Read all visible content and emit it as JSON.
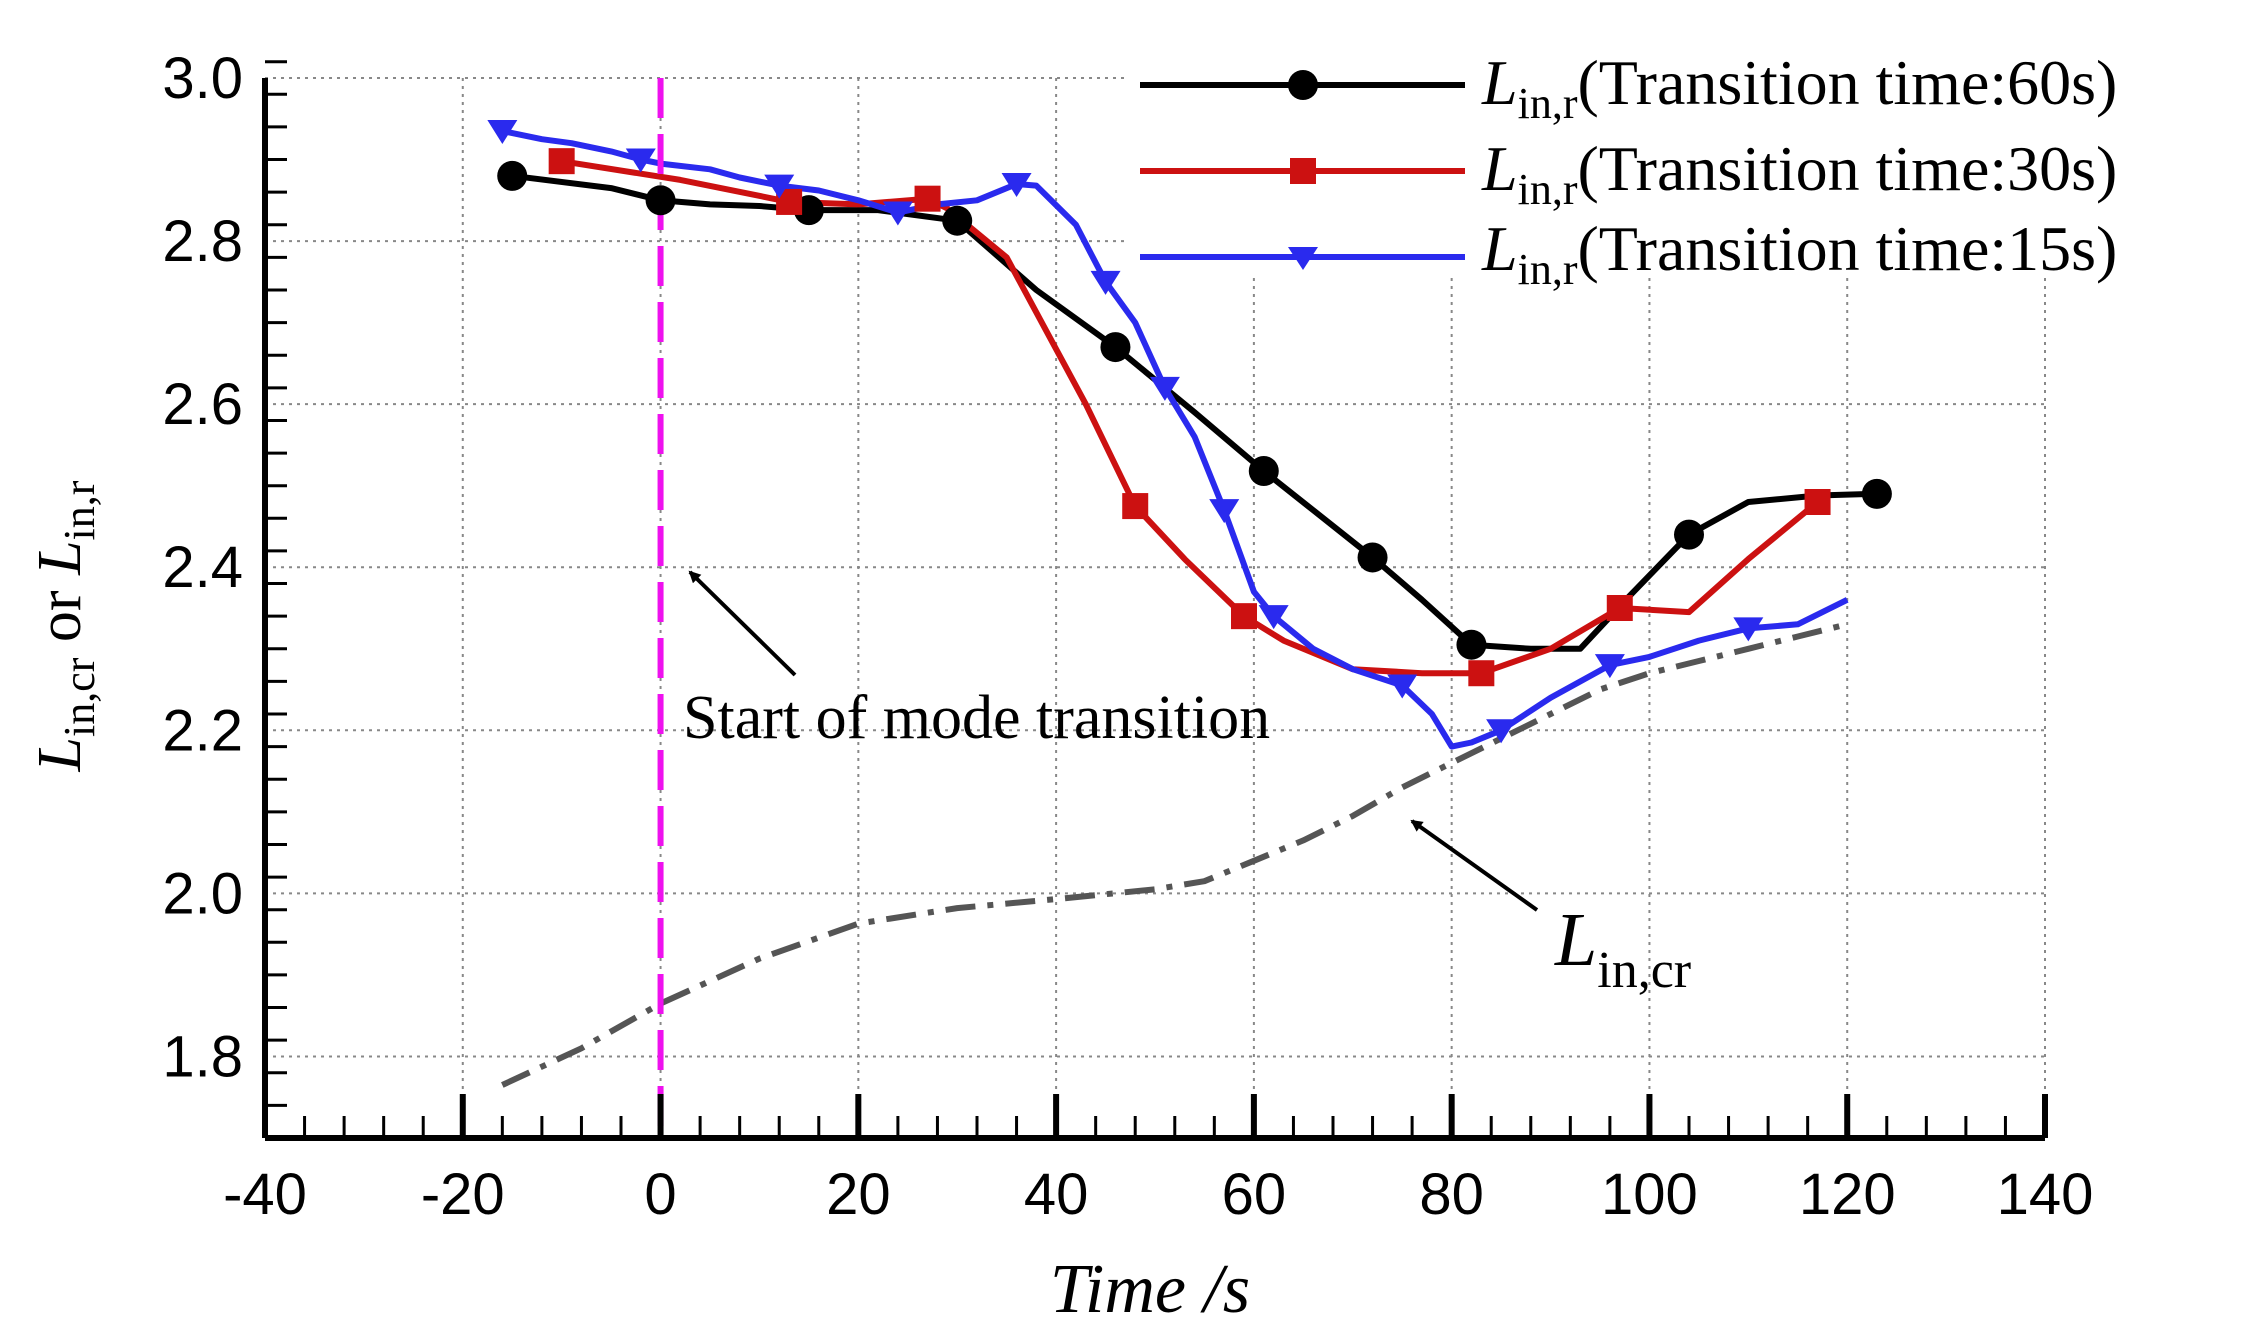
{
  "chart_data": {
    "type": "line",
    "title": "",
    "xlabel": "Time /s",
    "ylabel": {
      "l1": "L",
      "s1": "in,cr",
      "mid": " or ",
      "l2": "L",
      "s2": "in,r"
    },
    "xlim": [
      -40,
      140
    ],
    "ylim": [
      1.7,
      3.0
    ],
    "xticks": [
      -40,
      -20,
      0,
      20,
      40,
      60,
      80,
      100,
      120,
      140
    ],
    "yticks": [
      "1.8",
      "2.0",
      "2.2",
      "2.4",
      "2.6",
      "2.8",
      "3.0"
    ],
    "grid": true,
    "legend_position": "top-right",
    "series": [
      {
        "name": "Lin,r(Transition time:60s)",
        "legend_main": "L",
        "legend_sub": "in,r",
        "legend_rest": "(Transition  time:60s)",
        "color": "#000000",
        "marker": "circle",
        "x": [
          -15,
          -5,
          0,
          5,
          10,
          15,
          22,
          30,
          38,
          46,
          54,
          61,
          66,
          72,
          77,
          82,
          88,
          93,
          98,
          104,
          110,
          117,
          123
        ],
        "y": [
          2.88,
          2.865,
          2.85,
          2.845,
          2.843,
          2.838,
          2.838,
          2.825,
          2.74,
          2.67,
          2.59,
          2.518,
          2.47,
          2.412,
          2.36,
          2.305,
          2.3,
          2.3,
          2.365,
          2.44,
          2.48,
          2.488,
          2.49
        ],
        "marker_x": [
          -15,
          0,
          15,
          30,
          46,
          61,
          72,
          82,
          104,
          123
        ],
        "marker_y": [
          2.88,
          2.85,
          2.838,
          2.825,
          2.67,
          2.518,
          2.412,
          2.305,
          2.44,
          2.49
        ]
      },
      {
        "name": "Lin,r(Transition time:30s)",
        "legend_main": "L",
        "legend_sub": "in,r",
        "legend_rest": "(Transition  time:30s)",
        "color": "#cc1111",
        "marker": "square",
        "x": [
          -10,
          2,
          13,
          20,
          27,
          29,
          35,
          43,
          48,
          53,
          59,
          63,
          70,
          77,
          83,
          90,
          97,
          104,
          110,
          117
        ],
        "y": [
          2.898,
          2.875,
          2.848,
          2.845,
          2.852,
          2.84,
          2.78,
          2.6,
          2.475,
          2.41,
          2.34,
          2.31,
          2.275,
          2.27,
          2.27,
          2.3,
          2.35,
          2.345,
          2.41,
          2.48
        ],
        "marker_x": [
          -10,
          13,
          27,
          48,
          59,
          83,
          97,
          117
        ],
        "marker_y": [
          2.898,
          2.848,
          2.852,
          2.475,
          2.34,
          2.27,
          2.35,
          2.48
        ]
      },
      {
        "name": "Lin,r(Transition time:15s)",
        "legend_main": "L",
        "legend_sub": "in,r",
        "legend_rest": "(Transition  time:15s)",
        "color": "#2a2aee",
        "marker": "triangle-down",
        "x": [
          -16,
          -12,
          -9,
          -5,
          -2,
          0,
          5,
          8,
          12,
          16,
          20,
          24,
          28,
          32,
          36,
          38,
          42,
          45,
          48,
          51,
          54,
          57,
          60,
          62,
          66,
          70,
          75,
          78,
          80,
          82,
          85,
          90,
          96,
          100,
          105,
          110,
          115,
          120
        ],
        "y": [
          2.935,
          2.925,
          2.92,
          2.91,
          2.9,
          2.895,
          2.888,
          2.878,
          2.868,
          2.862,
          2.85,
          2.835,
          2.845,
          2.85,
          2.87,
          2.868,
          2.82,
          2.75,
          2.7,
          2.62,
          2.56,
          2.47,
          2.37,
          2.34,
          2.3,
          2.275,
          2.255,
          2.22,
          2.18,
          2.185,
          2.2,
          2.24,
          2.28,
          2.29,
          2.31,
          2.325,
          2.33,
          2.36
        ],
        "marker_x": [
          -16,
          -2,
          12,
          24,
          36,
          45,
          51,
          57,
          62,
          75,
          85,
          96,
          110
        ],
        "marker_y": [
          2.935,
          2.9,
          2.868,
          2.835,
          2.87,
          2.75,
          2.62,
          2.47,
          2.34,
          2.255,
          2.2,
          2.28,
          2.325
        ]
      },
      {
        "name": "Lin,cr",
        "color": "#555555",
        "marker": "none",
        "linestyle": "dash-dot",
        "x": [
          -16,
          -8,
          0,
          10,
          20,
          30,
          40,
          50,
          55,
          60,
          65,
          70,
          75,
          80,
          85,
          90,
          95,
          100,
          105,
          110,
          115,
          120
        ],
        "y": [
          1.765,
          1.81,
          1.865,
          1.92,
          1.963,
          1.982,
          1.993,
          2.005,
          2.015,
          2.04,
          2.065,
          2.095,
          2.13,
          2.16,
          2.19,
          2.22,
          2.25,
          2.27,
          2.285,
          2.3,
          2.315,
          2.33
        ]
      }
    ],
    "vertical_marker": {
      "x": 0,
      "color": "#ee11ee",
      "style": "dashed"
    },
    "annotations": {
      "start_label": "Start of mode transition",
      "lincr_main": "L",
      "lincr_sub": "in,cr"
    }
  }
}
